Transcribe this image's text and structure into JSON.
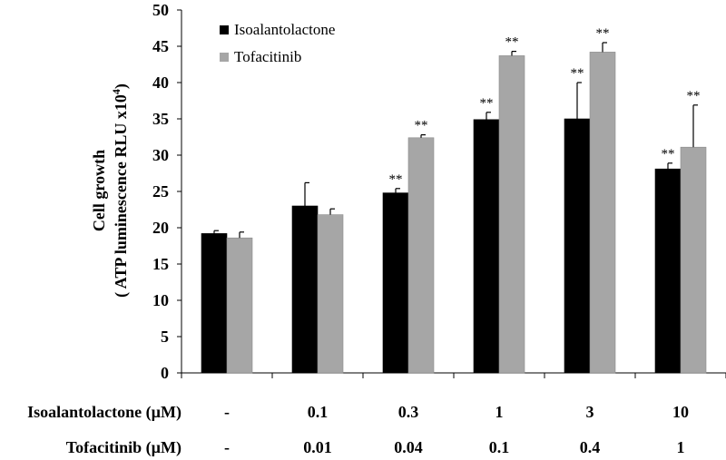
{
  "chart_data": {
    "type": "bar",
    "ylabel_line1": "Cell growth",
    "ylabel_line2": "( ATP luminescence RLU x10",
    "ylabel_sup": "4",
    "ylabel_close": ")",
    "ylim": [
      0,
      50
    ],
    "yticks": [
      "0",
      "5",
      "10",
      "15",
      "20",
      "25",
      "30",
      "35",
      "40",
      "45",
      "50"
    ],
    "legend_position": "top-left",
    "grid": false,
    "significance_mark": "**",
    "row_labels": [
      "Isoalantolactone (µM)",
      "Tofacitinib (µM)"
    ],
    "categories": [
      {
        "isoalantolactone": "-",
        "tofacitinib": "-"
      },
      {
        "isoalantolactone": "0.1",
        "tofacitinib": "0.01"
      },
      {
        "isoalantolactone": "0.3",
        "tofacitinib": "0.04"
      },
      {
        "isoalantolactone": "1",
        "tofacitinib": "0.1"
      },
      {
        "isoalantolactone": "3",
        "tofacitinib": "0.4"
      },
      {
        "isoalantolactone": "10",
        "tofacitinib": "1"
      }
    ],
    "series": [
      {
        "name": "Isoalantolactone",
        "color": "#000000",
        "values": [
          19.2,
          23.0,
          24.8,
          34.9,
          35.0,
          28.1
        ],
        "errors": [
          0.4,
          3.2,
          0.6,
          1.0,
          5.0,
          0.8
        ],
        "significant": [
          false,
          false,
          true,
          true,
          true,
          true
        ]
      },
      {
        "name": "Tofacitinib",
        "color": "#a6a6a6",
        "values": [
          18.6,
          21.8,
          32.4,
          43.7,
          44.2,
          31.1
        ],
        "errors": [
          0.8,
          0.8,
          0.4,
          0.6,
          1.3,
          5.8
        ],
        "significant": [
          false,
          false,
          true,
          true,
          true,
          true
        ]
      }
    ]
  }
}
